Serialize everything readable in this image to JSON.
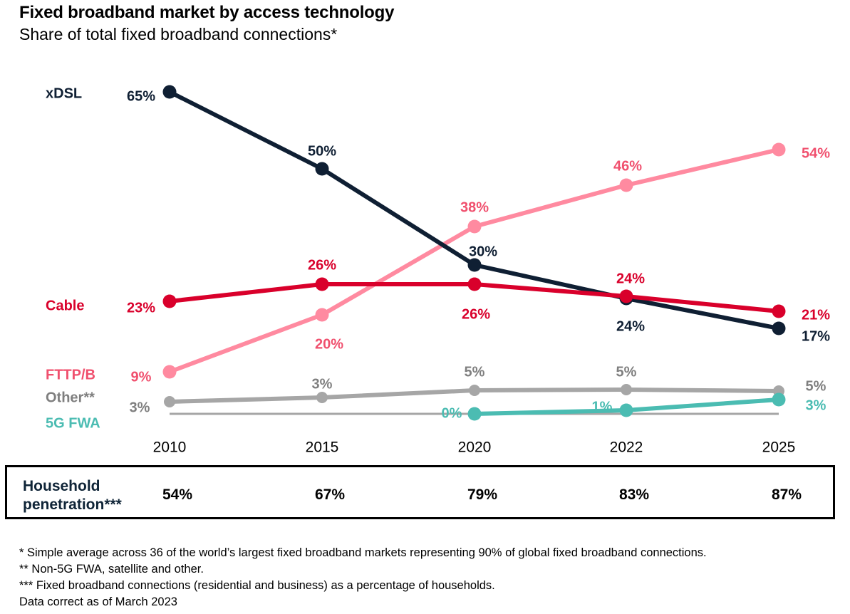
{
  "header": {
    "title": "Fixed broadband market by access technology",
    "subtitle": "Share of total fixed broadband connections*"
  },
  "chart_data": {
    "type": "line",
    "title": "Fixed broadband market by access technology",
    "subtitle": "Share of total fixed broadband connections*",
    "xlabel": "",
    "ylabel": "",
    "categories": [
      "2010",
      "2015",
      "2020",
      "2022",
      "2025"
    ],
    "grid": false,
    "legend": "left (inline series labels)",
    "series": [
      {
        "name": "xDSL",
        "color": "#0f1f33",
        "values": [
          65,
          50,
          30,
          24,
          17
        ],
        "labels": [
          "65%",
          "50%",
          "30%",
          "24%",
          "17%"
        ]
      },
      {
        "name": "Cable",
        "color": "#d9002b",
        "values": [
          23,
          26,
          26,
          24,
          21
        ],
        "labels": [
          "23%",
          "26%",
          "26%",
          "24%",
          "21%"
        ]
      },
      {
        "name": "FTTP/B",
        "color": "#ff8aa0",
        "label_color": "#f0506e",
        "values": [
          9,
          20,
          38,
          46,
          54
        ],
        "labels": [
          "9%",
          "20%",
          "38%",
          "46%",
          "54%"
        ]
      },
      {
        "name": "Other**",
        "color": "#a6a6a6",
        "label_color": "#7f7f7f",
        "values": [
          3,
          3,
          5,
          5,
          5
        ],
        "labels": [
          "3%",
          "3%",
          "5%",
          "5%",
          "5%"
        ]
      },
      {
        "name": "5G FWA",
        "color": "#4bbcb2",
        "values": [
          null,
          null,
          0,
          1,
          3
        ],
        "labels": [
          null,
          null,
          "0%",
          "1%",
          "3%"
        ]
      }
    ],
    "baseline_color": "#a6a6a6"
  },
  "penetration": {
    "label_line1": "Household",
    "label_line2": "penetration***",
    "values": [
      "54%",
      "67%",
      "79%",
      "83%",
      "87%"
    ]
  },
  "notes": [
    "* Simple average across 36 of the world’s largest fixed broadband markets representing 90% of global fixed broadband connections.",
    "** Non-5G FWA, satellite and other.",
    "*** Fixed broadband connections (residential and business) as a percentage of households.",
    "Data correct as of March 2023"
  ]
}
